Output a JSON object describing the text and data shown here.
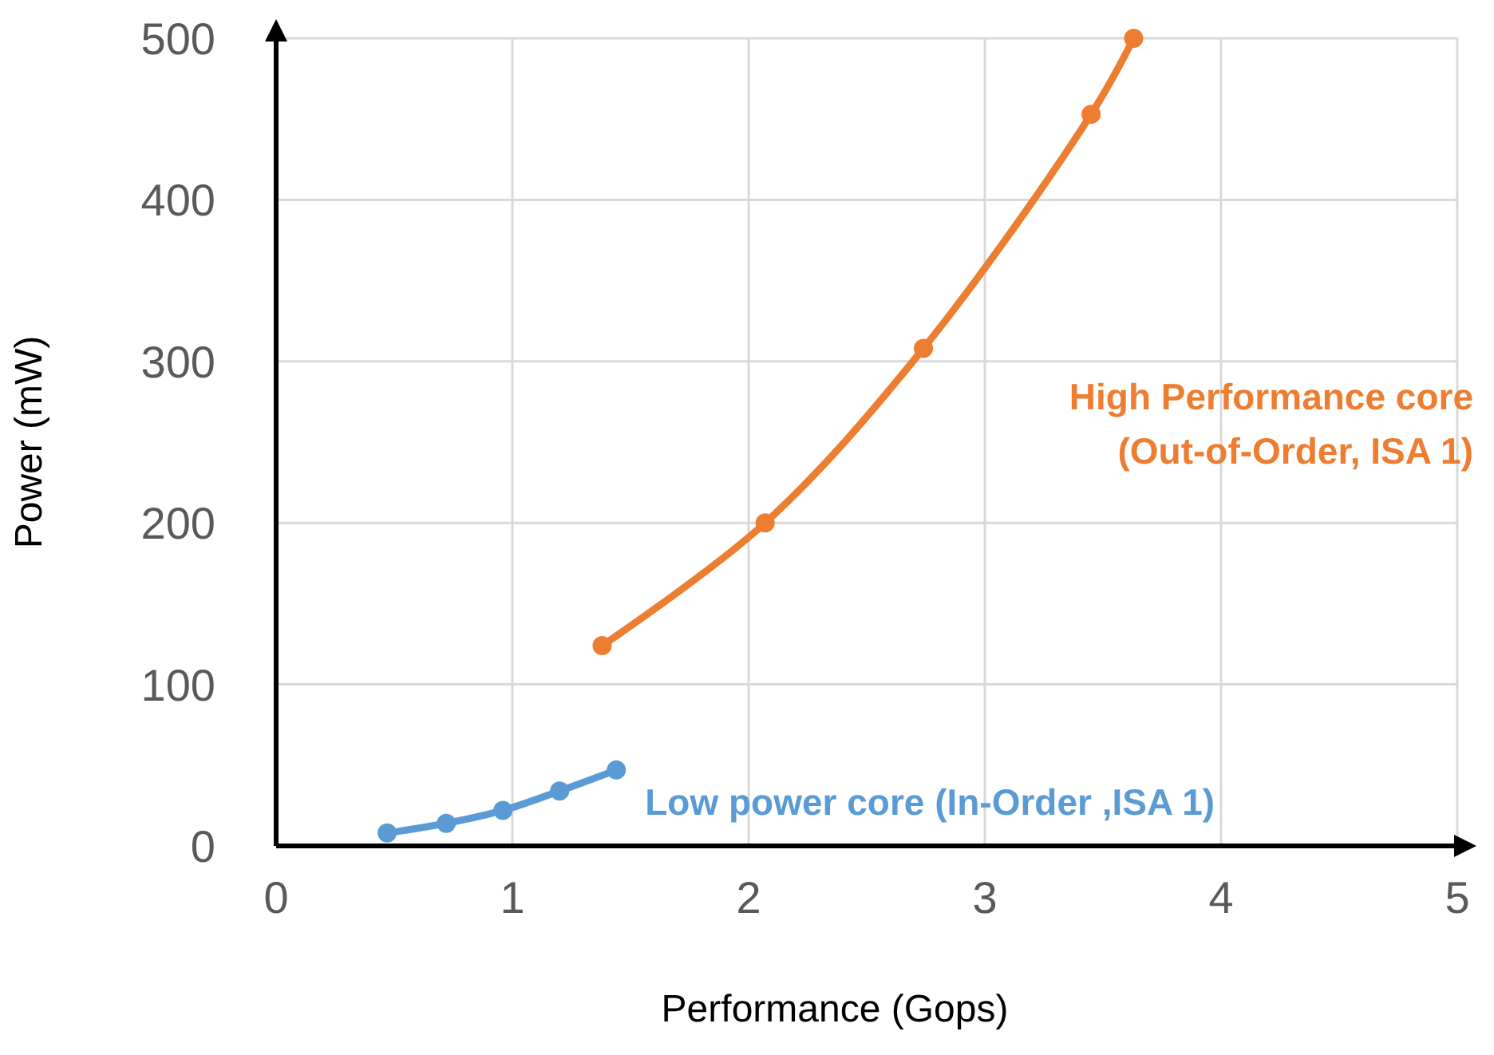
{
  "chart_data": {
    "type": "line",
    "xlabel": "Performance (Gops)",
    "ylabel": "Power (mW)",
    "xlim": [
      0,
      5
    ],
    "xticks": [
      0,
      1,
      2,
      3,
      4,
      5
    ],
    "ylim": [
      0,
      500
    ],
    "yticks": [
      0,
      100,
      200,
      300,
      400,
      500
    ],
    "grid": true,
    "marker": "circle",
    "line_style": "solid",
    "series": [
      {
        "name": "Low power core (In-Order ,ISA 1)",
        "color": "#5b9bd5",
        "x": [
          0.47,
          0.72,
          0.96,
          1.2,
          1.44
        ],
        "values": [
          8,
          14,
          22,
          34,
          47
        ]
      },
      {
        "name": "High Performance core (Out-of-Order, ISA 1)",
        "color": "#ed7d31",
        "x": [
          1.38,
          2.07,
          2.74,
          3.45,
          3.63
        ],
        "values": [
          124,
          200,
          308,
          453,
          500
        ]
      }
    ]
  }
}
